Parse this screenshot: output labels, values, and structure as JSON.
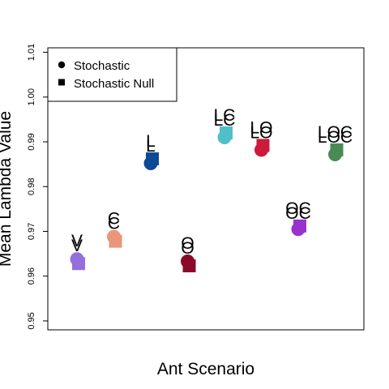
{
  "chart_data": {
    "type": "scatter",
    "title": "",
    "xlabel": "Ant Scenario",
    "ylabel": "Mean Lambda Value",
    "ylim": [
      0.948,
      1.011
    ],
    "yticks": [
      "0.95",
      "0.96",
      "0.97",
      "0.98",
      "0.99",
      "1.00",
      "1.01"
    ],
    "legend": {
      "position": "top-left",
      "items": [
        {
          "label": "Stochastic",
          "shape": "circle"
        },
        {
          "label": "Stochastic Null",
          "shape": "square"
        }
      ]
    },
    "categories": [
      "V",
      "C",
      "L",
      "O",
      "LC",
      "LO",
      "OC",
      "LOC"
    ],
    "series": [
      {
        "name": "Stochastic",
        "shape": "circle",
        "values": [
          0.9638,
          0.9688,
          0.9852,
          0.9633,
          0.991,
          0.9882,
          0.9705,
          0.9872
        ]
      },
      {
        "name": "Stochastic Null",
        "shape": "square",
        "values": [
          0.9628,
          0.9678,
          0.9862,
          0.9623,
          0.992,
          0.9892,
          0.9712,
          0.9882
        ]
      }
    ],
    "colors": [
      "#9370DB",
      "#E9967A",
      "#0D4A96",
      "#8B0A2A",
      "#4FBFC8",
      "#CC1A3A",
      "#9932CC",
      "#4A8A55"
    ]
  }
}
